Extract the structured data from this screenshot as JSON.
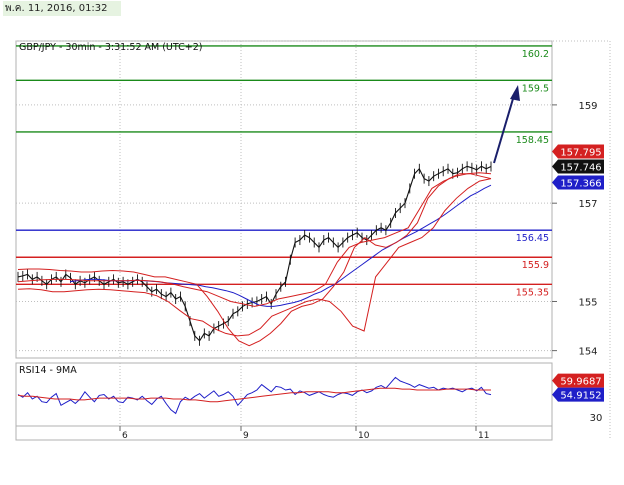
{
  "header": {
    "timestamp": "พ.ค. 11, 2016, 01:32"
  },
  "chart_data": [
    {
      "type": "line",
      "title": "GBP/JPY - 30min - 3:31:52 AM (UTC+2)",
      "x_tick_labels": [
        "6",
        "9",
        "10",
        "11"
      ],
      "y_ticks": [
        154,
        155,
        157,
        159
      ],
      "ylim": [
        153.85,
        160.3
      ],
      "grid": true,
      "levels": [
        {
          "label": "160.2",
          "value": 160.2,
          "color": "#1a8a1a"
        },
        {
          "label": "159.5",
          "value": 159.5,
          "color": "#1a8a1a"
        },
        {
          "label": "158.45",
          "value": 158.45,
          "color": "#1a8a1a"
        },
        {
          "label": "156.45",
          "value": 156.45,
          "color": "#1f1fc8"
        },
        {
          "label": "155.9",
          "value": 155.9,
          "color": "#d42020"
        },
        {
          "label": "155.35",
          "value": 155.35,
          "color": "#d42020"
        }
      ],
      "price_tags": [
        {
          "label": "157.795",
          "value": 157.795,
          "color": "#d42020"
        },
        {
          "label": "157.746",
          "value": 157.746,
          "color": "#111111"
        },
        {
          "label": "157.366",
          "value": 157.366,
          "color": "#1f1fc8"
        }
      ],
      "series": [
        {
          "color": "#111111",
          "values": [
            155.5,
            155.52,
            155.55,
            155.45,
            155.5,
            155.42,
            155.35,
            155.45,
            155.5,
            155.4,
            155.55,
            155.48,
            155.35,
            155.42,
            155.38,
            155.45,
            155.5,
            155.42,
            155.35,
            155.4,
            155.45,
            155.38,
            155.4,
            155.35,
            155.4,
            155.45,
            155.4,
            155.3,
            155.2,
            155.25,
            155.15,
            155.1,
            155.18,
            155.05,
            155.1,
            154.9,
            154.6,
            154.3,
            154.2,
            154.35,
            154.3,
            154.45,
            154.5,
            154.55,
            154.6,
            154.75,
            154.8,
            154.9,
            154.95,
            154.98,
            155.0,
            155.05,
            155.1,
            154.95,
            155.15,
            155.3,
            155.4,
            155.85,
            156.2,
            156.25,
            156.35,
            156.3,
            156.2,
            156.1,
            156.25,
            156.3,
            156.2,
            156.1,
            156.2,
            156.3,
            156.35,
            156.4,
            156.3,
            156.25,
            156.35,
            156.45,
            156.5,
            156.45,
            156.6,
            156.8,
            156.9,
            157.0,
            157.3,
            157.6,
            157.7,
            157.5,
            157.45,
            157.55,
            157.6,
            157.65,
            157.7,
            157.6,
            157.62,
            157.7,
            157.75,
            157.72,
            157.68,
            157.75,
            157.7,
            157.746
          ]
        },
        {
          "color": "#1f1fc8",
          "values": [
            155.4,
            155.42,
            155.44,
            155.45,
            155.45,
            155.44,
            155.42,
            155.42,
            155.42,
            155.42,
            155.43,
            155.42,
            155.41,
            155.4,
            155.38,
            155.37,
            155.36,
            155.35,
            155.34,
            155.33,
            155.3,
            155.28,
            155.25,
            155.22,
            155.18,
            155.12,
            155.05,
            154.98,
            154.92,
            154.9,
            154.9,
            154.92,
            154.95,
            154.98,
            155.02,
            155.08,
            155.15,
            155.2,
            155.28,
            155.35,
            155.45,
            155.55,
            155.65,
            155.75,
            155.85,
            155.95,
            156.05,
            156.12,
            156.2,
            156.28,
            156.35,
            156.42,
            156.5,
            156.58,
            156.66,
            156.75,
            156.85,
            156.95,
            157.05,
            157.15,
            157.22,
            157.3,
            157.366
          ]
        },
        {
          "color": "#d42020",
          "values": [
            155.65,
            155.66,
            155.66,
            155.65,
            155.63,
            155.62,
            155.6,
            155.6,
            155.62,
            155.63,
            155.62,
            155.6,
            155.55,
            155.5,
            155.5,
            155.45,
            155.4,
            155.35,
            155.1,
            154.8,
            154.45,
            154.2,
            154.1,
            154.2,
            154.35,
            154.55,
            154.8,
            154.9,
            154.95,
            155.05,
            155.3,
            155.6,
            156.1,
            156.3,
            156.15,
            156.1,
            156.2,
            156.35,
            156.6,
            157.1,
            157.35,
            157.5,
            157.6,
            157.6,
            157.55,
            157.5
          ]
        },
        {
          "color": "#d42020",
          "values": [
            155.25,
            155.26,
            155.24,
            155.2,
            155.2,
            155.22,
            155.24,
            155.25,
            155.24,
            155.22,
            155.2,
            155.18,
            155.12,
            155.0,
            154.82,
            154.65,
            154.6,
            154.45,
            154.35,
            154.3,
            154.32,
            154.45,
            154.7,
            154.8,
            154.9,
            155.0,
            155.05,
            155.0,
            154.8,
            154.5,
            154.4,
            155.5,
            155.8,
            156.1,
            156.2,
            156.3,
            156.5,
            156.85,
            157.1,
            157.3,
            157.45,
            157.5
          ]
        },
        {
          "color": "#d42020",
          "values": [
            155.4,
            155.42,
            155.44,
            155.45,
            155.45,
            155.44,
            155.42,
            155.42,
            155.42,
            155.42,
            155.43,
            155.42,
            155.4,
            155.36,
            155.3,
            155.25,
            155.2,
            155.1,
            155.0,
            154.95,
            154.9,
            154.95,
            155.05,
            155.1,
            155.15,
            155.2,
            155.35,
            155.8,
            156.1,
            156.2,
            156.25,
            156.3,
            156.4,
            156.5,
            156.9,
            157.3,
            157.45,
            157.55,
            157.6,
            157.62,
            157.6
          ]
        }
      ]
    },
    {
      "type": "line",
      "title": "RSI14 - 9MA",
      "y_ticks": [
        30
      ],
      "ylim": [
        20,
        90
      ],
      "price_tags": [
        {
          "label": "59.9687",
          "value": 59.9687,
          "color": "#d42020"
        },
        {
          "label": "54.9152",
          "value": 54.9152,
          "color": "#1f1fc8"
        }
      ],
      "series": [
        {
          "color": "#1f1fc8",
          "values": [
            55,
            52,
            57,
            50,
            53,
            47,
            46,
            52,
            56,
            43,
            46,
            49,
            45,
            50,
            58,
            52,
            47,
            54,
            55,
            50,
            53,
            47,
            46,
            52,
            51,
            49,
            53,
            48,
            44,
            50,
            53,
            45,
            38,
            34,
            47,
            52,
            49,
            53,
            56,
            51,
            55,
            59,
            53,
            55,
            58,
            53,
            43,
            49,
            55,
            57,
            60,
            66,
            62,
            58,
            64,
            63,
            60,
            61,
            55,
            59,
            57,
            54,
            56,
            58,
            55,
            53,
            52,
            55,
            57,
            56,
            54,
            58,
            60,
            57,
            59,
            63,
            65,
            62,
            68,
            74,
            70,
            68,
            66,
            63,
            66,
            64,
            62,
            63,
            60,
            62,
            61,
            62,
            60,
            58,
            61,
            62,
            59,
            63,
            56,
            54.9152
          ]
        },
        {
          "color": "#d42020",
          "values": [
            54,
            53,
            53,
            52,
            51,
            50,
            50,
            50,
            49,
            49,
            50,
            51,
            51,
            51,
            51,
            51,
            50,
            50,
            51,
            51,
            51,
            50,
            50,
            49,
            49,
            48,
            47,
            47,
            48,
            49,
            50,
            51,
            52,
            53,
            54,
            55,
            56,
            57,
            57,
            58,
            58,
            58,
            58,
            57,
            57,
            58,
            59,
            60,
            61,
            62,
            62,
            62,
            61,
            61,
            60,
            60,
            60,
            60,
            61,
            61,
            61,
            61,
            60,
            60,
            59.9687
          ]
        }
      ]
    }
  ]
}
